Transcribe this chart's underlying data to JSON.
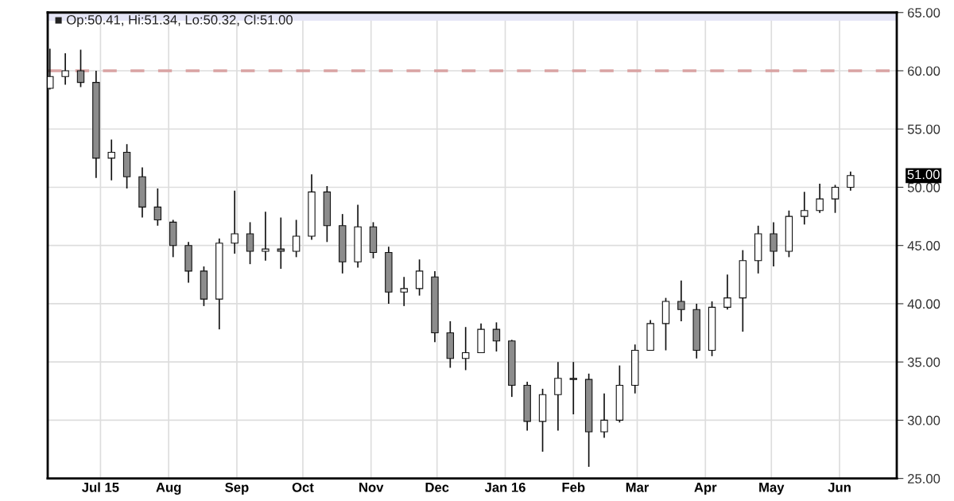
{
  "chart_data": {
    "type": "candlestick",
    "x": [
      "2015-06-08",
      "2015-06-15",
      "2015-06-22",
      "2015-06-29",
      "2015-07-06",
      "2015-07-13",
      "2015-07-20",
      "2015-07-27",
      "2015-08-03",
      "2015-08-10",
      "2015-08-17",
      "2015-08-24",
      "2015-08-31",
      "2015-09-07",
      "2015-09-14",
      "2015-09-21",
      "2015-09-28",
      "2015-10-05",
      "2015-10-12",
      "2015-10-19",
      "2015-10-26",
      "2015-11-02",
      "2015-11-09",
      "2015-11-16",
      "2015-11-23",
      "2015-11-30",
      "2015-12-07",
      "2015-12-14",
      "2015-12-21",
      "2015-12-28",
      "2016-01-04",
      "2016-01-11",
      "2016-01-18",
      "2016-01-25",
      "2016-02-01",
      "2016-02-08",
      "2016-02-15",
      "2016-02-22",
      "2016-02-29",
      "2016-03-07",
      "2016-03-14",
      "2016-03-21",
      "2016-03-28",
      "2016-04-04",
      "2016-04-11",
      "2016-04-18",
      "2016-04-25",
      "2016-05-02",
      "2016-05-09",
      "2016-05-16",
      "2016-05-23",
      "2016-05-30",
      "2016-06-06"
    ],
    "ohlc": [
      [
        58.5,
        61.9,
        58.4,
        59.5
      ],
      [
        59.5,
        61.5,
        58.8,
        60.0
      ],
      [
        60.0,
        61.8,
        58.6,
        59.0
      ],
      [
        59.0,
        60.0,
        50.8,
        52.5
      ],
      [
        52.5,
        54.1,
        50.6,
        53.0
      ],
      [
        53.0,
        53.7,
        49.9,
        50.9
      ],
      [
        50.9,
        51.7,
        47.4,
        48.3
      ],
      [
        48.3,
        49.9,
        46.7,
        47.2
      ],
      [
        47.0,
        47.2,
        44.0,
        45.0
      ],
      [
        45.0,
        45.3,
        41.8,
        42.8
      ],
      [
        42.8,
        43.2,
        39.8,
        40.4
      ],
      [
        40.4,
        45.6,
        37.8,
        45.2
      ],
      [
        45.2,
        49.7,
        44.3,
        46.0
      ],
      [
        46.0,
        47.0,
        43.4,
        44.5
      ],
      [
        44.5,
        47.9,
        43.7,
        44.7
      ],
      [
        44.7,
        47.4,
        43.0,
        44.5
      ],
      [
        44.5,
        47.2,
        44.0,
        45.8
      ],
      [
        45.8,
        51.1,
        45.5,
        49.6
      ],
      [
        49.6,
        50.1,
        45.3,
        46.7
      ],
      [
        46.7,
        47.7,
        42.6,
        43.6
      ],
      [
        43.6,
        48.5,
        43.1,
        46.6
      ],
      [
        46.6,
        47.0,
        43.9,
        44.4
      ],
      [
        44.4,
        44.9,
        40.0,
        41.0
      ],
      [
        41.0,
        42.3,
        39.8,
        41.3
      ],
      [
        41.3,
        43.8,
        40.7,
        42.8
      ],
      [
        42.3,
        42.8,
        36.7,
        37.5
      ],
      [
        37.5,
        38.5,
        34.5,
        35.3
      ],
      [
        35.3,
        38.0,
        34.3,
        35.8
      ],
      [
        35.8,
        38.3,
        35.8,
        37.8
      ],
      [
        37.8,
        38.4,
        35.9,
        36.8
      ],
      [
        36.8,
        36.9,
        32.0,
        33.0
      ],
      [
        33.0,
        33.3,
        29.1,
        29.9
      ],
      [
        29.9,
        32.7,
        27.3,
        32.2
      ],
      [
        32.2,
        35.0,
        29.1,
        33.6
      ],
      [
        33.6,
        35.0,
        30.5,
        33.5
      ],
      [
        33.5,
        34.0,
        26.0,
        29.0
      ],
      [
        29.0,
        32.3,
        28.5,
        30.0
      ],
      [
        30.0,
        34.7,
        29.8,
        33.0
      ],
      [
        33.0,
        36.5,
        32.3,
        36.0
      ],
      [
        36.0,
        38.6,
        36.0,
        38.3
      ],
      [
        38.3,
        40.5,
        36.0,
        40.2
      ],
      [
        40.2,
        42.0,
        38.5,
        39.5
      ],
      [
        39.5,
        40.0,
        35.3,
        36.0
      ],
      [
        36.0,
        40.2,
        35.5,
        39.7
      ],
      [
        39.7,
        42.5,
        39.5,
        40.5
      ],
      [
        40.5,
        44.6,
        37.6,
        43.7
      ],
      [
        43.7,
        46.7,
        42.6,
        46.0
      ],
      [
        46.0,
        47.0,
        43.2,
        44.5
      ],
      [
        44.5,
        48.0,
        44.0,
        47.5
      ],
      [
        47.5,
        49.6,
        46.8,
        48.0
      ],
      [
        48.0,
        50.3,
        47.8,
        49.0
      ],
      [
        49.0,
        50.2,
        47.8,
        50.0
      ],
      [
        50.0,
        51.34,
        49.7,
        51.0
      ]
    ],
    "xlim": [
      "2015-06-07",
      "2016-06-27"
    ],
    "xticks": [
      {
        "value": "2015-07-01",
        "label": "Jul 15"
      },
      {
        "value": "2015-08-01",
        "label": "Aug"
      },
      {
        "value": "2015-09-01",
        "label": "Sep"
      },
      {
        "value": "2015-10-01",
        "label": "Oct"
      },
      {
        "value": "2015-11-01",
        "label": "Nov"
      },
      {
        "value": "2015-12-01",
        "label": "Dec"
      },
      {
        "value": "2016-01-01",
        "label": "Jan 16"
      },
      {
        "value": "2016-02-01",
        "label": "Feb"
      },
      {
        "value": "2016-03-01",
        "label": "Mar"
      },
      {
        "value": "2016-04-01",
        "label": "Apr"
      },
      {
        "value": "2016-05-01",
        "label": "May"
      },
      {
        "value": "2016-06-01",
        "label": "Jun"
      }
    ],
    "ylim": [
      25,
      65
    ],
    "yticks": [
      {
        "value": 25,
        "label": "25.00"
      },
      {
        "value": 30,
        "label": "30.00"
      },
      {
        "value": 35,
        "label": "35.00"
      },
      {
        "value": 40,
        "label": "40.00"
      },
      {
        "value": 45,
        "label": "45.00"
      },
      {
        "value": 50,
        "label": "50.00"
      },
      {
        "value": 55,
        "label": "55.00"
      },
      {
        "value": 60,
        "label": "60.00"
      },
      {
        "value": 65,
        "label": "65.00"
      }
    ],
    "bands": [
      {
        "axis": "y",
        "from": 64.3,
        "to": 65,
        "color": "#e4e4f6"
      }
    ],
    "ref_lines": [
      {
        "axis": "y",
        "value": 60,
        "color": "#d9a3a3",
        "line_style": "dashed"
      }
    ],
    "annotations": [
      "■ Op:50.41, Hi:51.34, Lo:50.32, Cl:51.00",
      "51.00"
    ],
    "colors": [
      "#ffffff",
      "#ffffff",
      "#8c8c8c",
      "#8c8c8c",
      "#ffffff",
      "#8c8c8c",
      "#8c8c8c",
      "#8c8c8c",
      "#8c8c8c",
      "#8c8c8c",
      "#8c8c8c",
      "#ffffff",
      "#ffffff",
      "#8c8c8c",
      "#ffffff",
      "#8c8c8c",
      "#ffffff",
      "#ffffff",
      "#8c8c8c",
      "#8c8c8c",
      "#ffffff",
      "#8c8c8c",
      "#8c8c8c",
      "#ffffff",
      "#ffffff",
      "#8c8c8c",
      "#8c8c8c",
      "#ffffff",
      "#ffffff",
      "#8c8c8c",
      "#8c8c8c",
      "#8c8c8c",
      "#ffffff",
      "#ffffff",
      "#8c8c8c",
      "#8c8c8c",
      "#ffffff",
      "#ffffff",
      "#ffffff",
      "#ffffff",
      "#ffffff",
      "#8c8c8c",
      "#8c8c8c",
      "#ffffff",
      "#ffffff",
      "#ffffff",
      "#ffffff",
      "#8c8c8c",
      "#ffffff",
      "#ffffff",
      "#ffffff",
      "#ffffff",
      "#ffffff"
    ],
    "grid": true
  }
}
